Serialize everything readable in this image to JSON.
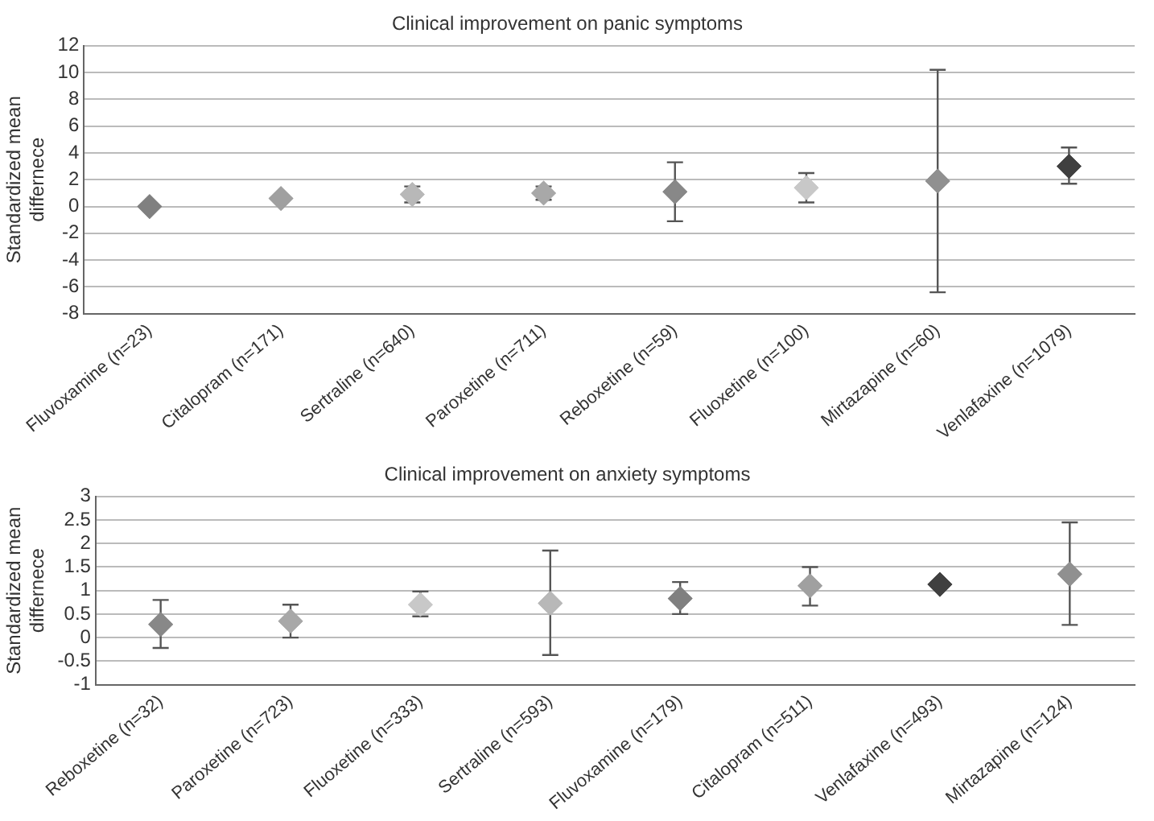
{
  "chart_data": [
    {
      "type": "scatter",
      "title": "Clinical improvement on panic symptoms",
      "ylabel": "Standardized mean differnece",
      "categories": [
        "Fluvoxamine (n=23)",
        "Citalopram (n=171)",
        "Sertraline (n=640)",
        "Paroxetine (n=711)",
        "Reboxetine (n=59)",
        "Fluoxetine (n=100)",
        "Mirtazapine (n=60)",
        "Venlafaxine (n=1079)"
      ],
      "values": [
        0,
        0.6,
        0.9,
        1.0,
        1.1,
        1.4,
        1.9,
        3.0
      ],
      "errors": [
        null,
        null,
        [
          0.3,
          1.5
        ],
        [
          0.5,
          1.5
        ],
        [
          -1.1,
          3.3
        ],
        [
          0.3,
          2.5
        ],
        [
          -6.4,
          10.2
        ],
        [
          1.7,
          4.4
        ]
      ],
      "colors": [
        "#808080",
        "#a0a0a0",
        "#b8b8b8",
        "#a8a8a8",
        "#888888",
        "#c8c8c8",
        "#909090",
        "#404040"
      ],
      "ylim": [
        -8,
        12
      ],
      "yticks": [
        -8,
        -6,
        -4,
        -2,
        0,
        2,
        4,
        6,
        8,
        10,
        12
      ],
      "grid": "y",
      "marker": "diamond",
      "legend": false
    },
    {
      "type": "scatter",
      "title": "Clinical improvement on anxiety symptoms",
      "ylabel": "Standardized mean differnece",
      "categories": [
        "Reboxetine (n=32)",
        "Paroxetine (n=723)",
        "Fluoxetine (n=333)",
        "Sertraline (n=593)",
        "Fluvoxamine (n=179)",
        "Citalopram (n=511)",
        "Venlafaxine (n=493)",
        "Mirtazapine (n=124)"
      ],
      "values": [
        0.28,
        0.35,
        0.7,
        0.73,
        0.83,
        1.1,
        1.13,
        1.35
      ],
      "errors": [
        [
          -0.22,
          0.8
        ],
        [
          0,
          0.7
        ],
        [
          0.45,
          0.98
        ],
        [
          -0.37,
          1.85
        ],
        [
          0.5,
          1.18
        ],
        [
          0.68,
          1.5
        ],
        null,
        [
          0.27,
          2.45
        ]
      ],
      "colors": [
        "#888888",
        "#a8a8a8",
        "#c8c8c8",
        "#b8b8b8",
        "#808080",
        "#a0a0a0",
        "#404040",
        "#909090"
      ],
      "ylim": [
        -1,
        3
      ],
      "yticks": [
        -1,
        -0.5,
        0,
        0.5,
        1,
        1.5,
        2,
        2.5,
        3
      ],
      "grid": "y",
      "marker": "diamond",
      "legend": false
    }
  ]
}
